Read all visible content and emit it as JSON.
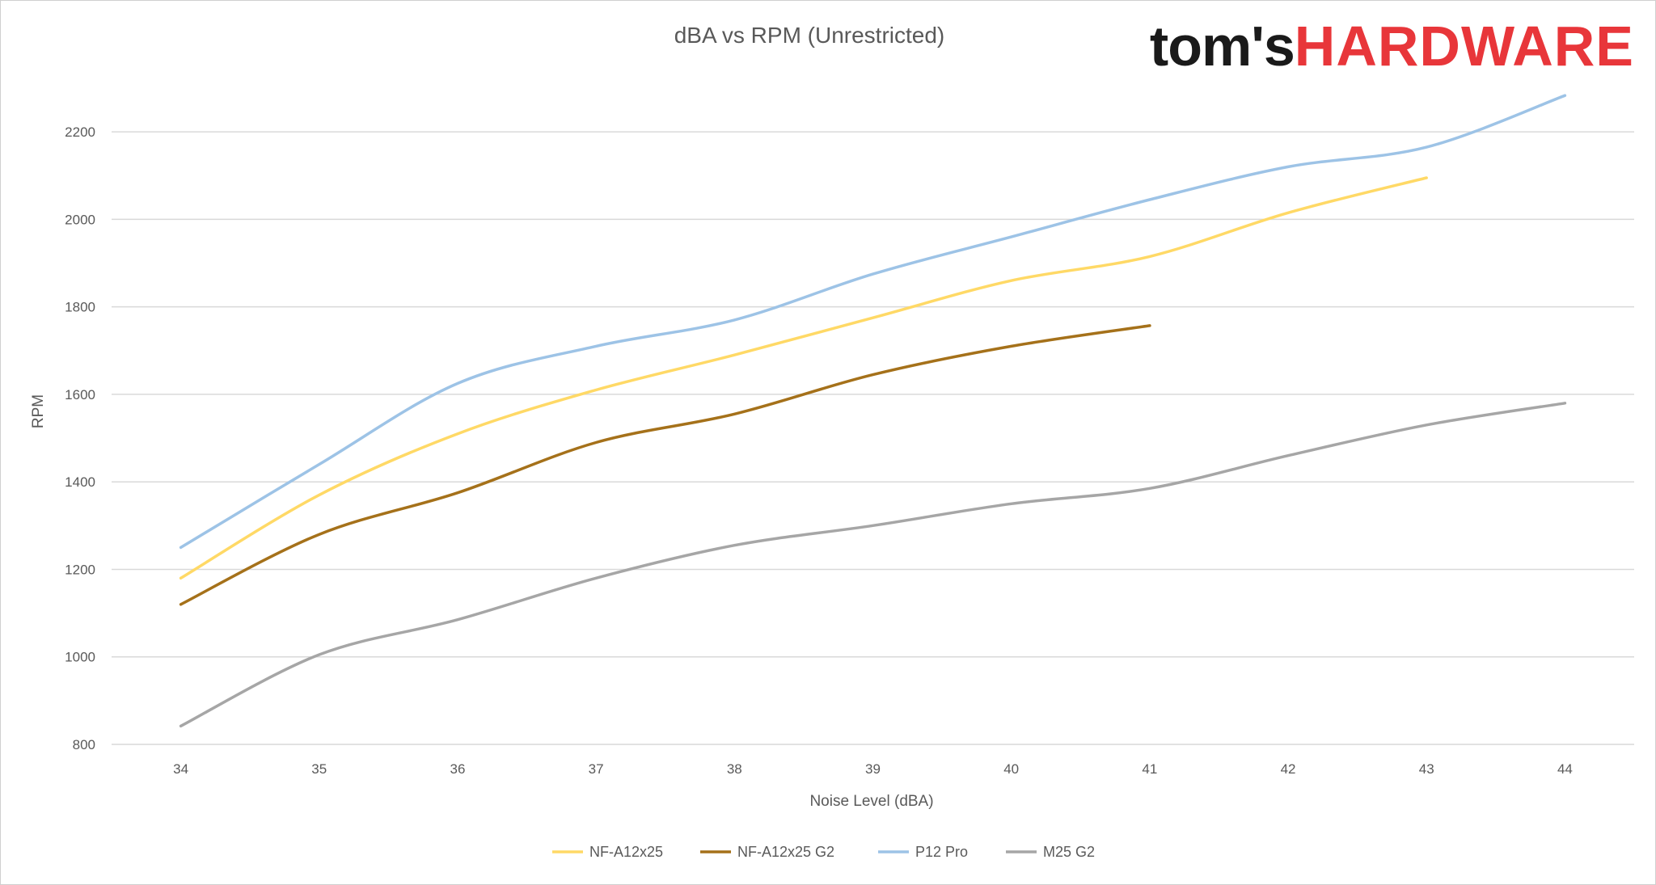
{
  "logo": {
    "prefix": "tom's",
    "suffix": "HARDWARE",
    "accent_color": "#e8363a"
  },
  "chart_data": {
    "type": "line",
    "title": "dBA vs RPM (Unrestricted)",
    "xlabel": "Noise Level (dBA)",
    "ylabel": "RPM",
    "x": [
      34,
      35,
      36,
      37,
      38,
      39,
      40,
      41,
      42,
      43,
      44
    ],
    "xlim": [
      33.5,
      44.5
    ],
    "ylim": [
      800,
      2300
    ],
    "yticks": [
      800,
      1000,
      1200,
      1400,
      1600,
      1800,
      2000,
      2200
    ],
    "grid": true,
    "legend_position": "bottom",
    "series": [
      {
        "name": "NF-A12x25",
        "color": "#ffd966",
        "x": [
          34,
          35,
          36,
          37,
          38,
          39,
          40,
          41,
          42,
          43
        ],
        "values": [
          1180,
          1370,
          1510,
          1610,
          1690,
          1775,
          1860,
          1915,
          2015,
          2095
        ]
      },
      {
        "name": "NF-A12x25 G2",
        "color": "#a5711a",
        "x": [
          34,
          35,
          36,
          37,
          38,
          39,
          40,
          41
        ],
        "values": [
          1120,
          1280,
          1375,
          1490,
          1555,
          1645,
          1710,
          1757
        ]
      },
      {
        "name": "P12 Pro",
        "color": "#9dc3e6",
        "x": [
          34,
          35,
          36,
          37,
          38,
          39,
          40,
          41,
          42,
          43,
          44
        ],
        "values": [
          1250,
          1440,
          1625,
          1710,
          1770,
          1875,
          1960,
          2045,
          2120,
          2165,
          2283
        ]
      },
      {
        "name": "M25 G2",
        "color": "#a6a6a6",
        "x": [
          34,
          35,
          36,
          37,
          38,
          39,
          40,
          41,
          42,
          43,
          44
        ],
        "values": [
          842,
          1005,
          1085,
          1180,
          1255,
          1300,
          1350,
          1385,
          1460,
          1530,
          1580
        ]
      }
    ]
  }
}
